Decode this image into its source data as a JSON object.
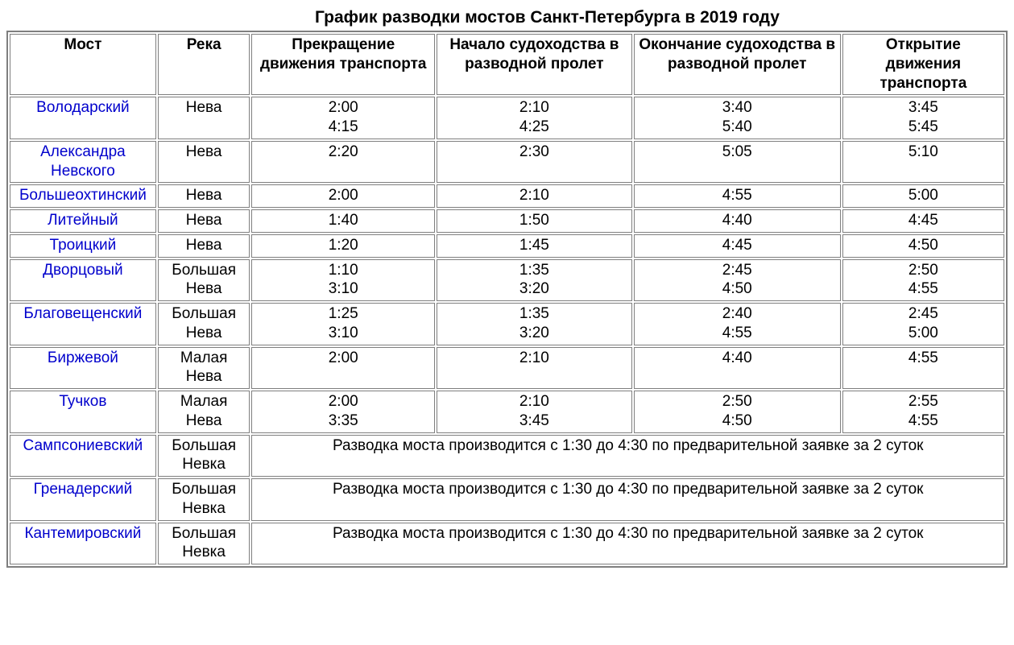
{
  "title": "График разводки мостов Санкт-Петербурга в 2019 году",
  "colors": {
    "page_bg": "#ffffff",
    "table_border": "#7f7f7f",
    "text": "#000000",
    "link": "#0000cc"
  },
  "typography": {
    "font_family": "Arial, Helvetica, sans-serif",
    "body_fontsize_pt": 14,
    "title_fontsize_pt": 16,
    "title_weight": "bold",
    "header_weight": "bold"
  },
  "table": {
    "columns": [
      {
        "key": "bridge",
        "label": "Мост"
      },
      {
        "key": "river",
        "label": "Река"
      },
      {
        "key": "traffic_stop",
        "label": "Прекращение движения транспорта"
      },
      {
        "key": "nav_start",
        "label": "Начало судоходства в разводной пролет"
      },
      {
        "key": "nav_end",
        "label": "Окончание судоходства в разводной пролет"
      },
      {
        "key": "traffic_open",
        "label": "Открытие движения транспорта"
      }
    ],
    "rows": [
      {
        "bridge": "Володарский",
        "river": "Нева",
        "traffic_stop": [
          "2:00",
          "4:15"
        ],
        "nav_start": [
          "2:10",
          "4:25"
        ],
        "nav_end": [
          "3:40",
          "5:40"
        ],
        "traffic_open": [
          "3:45",
          "5:45"
        ]
      },
      {
        "bridge": "Александра Невского",
        "river": "Нева",
        "traffic_stop": [
          "2:20"
        ],
        "nav_start": [
          "2:30"
        ],
        "nav_end": [
          "5:05"
        ],
        "traffic_open": [
          "5:10"
        ]
      },
      {
        "bridge": "Большеохтинский",
        "river": "Нева",
        "traffic_stop": [
          "2:00"
        ],
        "nav_start": [
          "2:10"
        ],
        "nav_end": [
          "4:55"
        ],
        "traffic_open": [
          "5:00"
        ]
      },
      {
        "bridge": "Литейный",
        "river": "Нева",
        "traffic_stop": [
          "1:40"
        ],
        "nav_start": [
          "1:50"
        ],
        "nav_end": [
          "4:40"
        ],
        "traffic_open": [
          "4:45"
        ]
      },
      {
        "bridge": "Троицкий",
        "river": "Нева",
        "traffic_stop": [
          "1:20"
        ],
        "nav_start": [
          "1:45"
        ],
        "nav_end": [
          "4:45"
        ],
        "traffic_open": [
          "4:50"
        ]
      },
      {
        "bridge": "Дворцовый",
        "river": "Большая Нева",
        "traffic_stop": [
          "1:10",
          "3:10"
        ],
        "nav_start": [
          "1:35",
          "3:20"
        ],
        "nav_end": [
          "2:45",
          "4:50"
        ],
        "traffic_open": [
          "2:50",
          "4:55"
        ]
      },
      {
        "bridge": "Благовещенский",
        "river": "Большая Нева",
        "traffic_stop": [
          "1:25",
          "3:10"
        ],
        "nav_start": [
          "1:35",
          "3:20"
        ],
        "nav_end": [
          "2:40",
          "4:55"
        ],
        "traffic_open": [
          "2:45",
          "5:00"
        ]
      },
      {
        "bridge": "Биржевой",
        "river": "Малая Нева",
        "traffic_stop": [
          "2:00"
        ],
        "nav_start": [
          "2:10"
        ],
        "nav_end": [
          "4:40"
        ],
        "traffic_open": [
          "4:55"
        ]
      },
      {
        "bridge": "Тучков",
        "river": "Малая Нева",
        "traffic_stop": [
          "2:00",
          "3:35"
        ],
        "nav_start": [
          "2:10",
          "3:45"
        ],
        "nav_end": [
          "2:50",
          "4:50"
        ],
        "traffic_open": [
          "2:55",
          "4:55"
        ]
      },
      {
        "bridge": "Сампсониевский",
        "river": "Большая Невка",
        "note": "Разводка моста производится с 1:30 до 4:30 по предварительной заявке за 2 суток"
      },
      {
        "bridge": "Гренадерский",
        "river": "Большая Невка",
        "note": "Разводка моста производится с 1:30 до 4:30 по предварительной заявке за 2 суток"
      },
      {
        "bridge": "Кантемировский",
        "river": "Большая Невка",
        "note": "Разводка моста производится с 1:30 до 4:30 по предварительной заявке за 2 суток"
      }
    ]
  }
}
